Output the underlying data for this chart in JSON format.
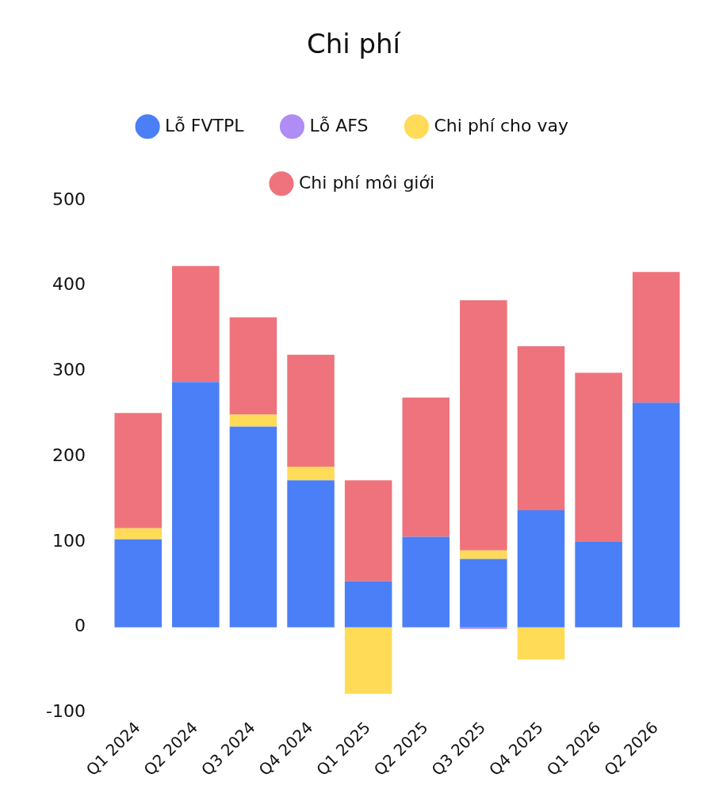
{
  "chart_data": {
    "type": "bar",
    "title": "Chi phí",
    "stacked": true,
    "legend": "top",
    "grid": false,
    "categories": [
      "Q1 2024",
      "Q2 2024",
      "Q3 2024",
      "Q4 2024",
      "Q1 2025",
      "Q2 2025",
      "Q3 2025",
      "Q4 2025",
      "Q1 2026",
      "Q2 2026"
    ],
    "ylim": [
      -100,
      500
    ],
    "yticks": [
      -100,
      0,
      100,
      200,
      300,
      400,
      500
    ],
    "series": [
      {
        "name": "Lỗ FVTPL",
        "color": "#4a7ff7",
        "values": [
          103,
          287,
          235,
          172,
          54,
          106,
          80,
          137,
          100,
          263
        ]
      },
      {
        "name": "Lỗ AFS",
        "color": "#b08cf5",
        "values": [
          0,
          0,
          0,
          0,
          0,
          0,
          -2,
          0,
          0,
          0
        ]
      },
      {
        "name": "Chi phí cho vay",
        "color": "#ffdb58",
        "values": [
          13,
          0,
          14,
          16,
          -78,
          0,
          10,
          -38,
          0,
          0
        ]
      },
      {
        "name": "Chi phí môi giới",
        "color": "#ef737c",
        "values": [
          135,
          136,
          114,
          131,
          118,
          163,
          293,
          192,
          198,
          153
        ]
      }
    ]
  }
}
